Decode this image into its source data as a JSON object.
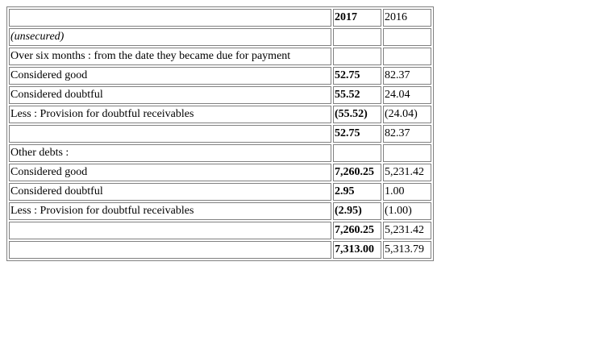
{
  "table": {
    "header": [
      "",
      "2017",
      "2016"
    ],
    "rows": [
      {
        "label": "(unsecured)",
        "y2017": "",
        "y2016": ""
      },
      {
        "label": "Over six months : from the date they became due for payment",
        "y2017": "",
        "y2016": ""
      },
      {
        "label": "Considered good",
        "y2017": "52.75",
        "y2016": "82.37"
      },
      {
        "label": "Considered doubtful",
        "y2017": "55.52",
        "y2016": "24.04"
      },
      {
        "label": "Less : Provision for doubtful receivables",
        "y2017": "(55.52)",
        "y2016": "(24.04)"
      },
      {
        "label": "",
        "y2017": "52.75",
        "y2016": "82.37"
      },
      {
        "label": "Other debts :",
        "y2017": "",
        "y2016": ""
      },
      {
        "label": "Considered good",
        "y2017": "7,260.25",
        "y2016": "5,231.42"
      },
      {
        "label": "Considered doubtful",
        "y2017": "2.95",
        "y2016": "1.00"
      },
      {
        "label": "Less : Provision for doubtful receivables",
        "y2017": "(2.95)",
        "y2016": "(1.00)"
      },
      {
        "label": "",
        "y2017": "7,260.25",
        "y2016": "5,231.42"
      },
      {
        "label": "",
        "y2017": "7,313.00",
        "y2016": "5,313.79"
      }
    ]
  }
}
